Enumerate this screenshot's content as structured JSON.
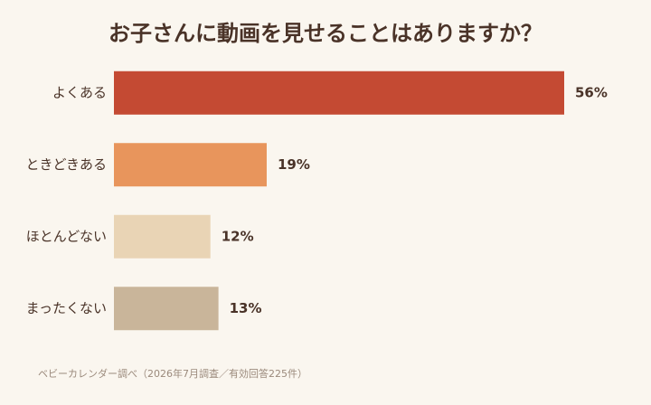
{
  "chart_data": {
    "type": "bar",
    "orientation": "horizontal",
    "title": "お子さんに動画を見せることはありますか？",
    "categories": [
      "よくある",
      "ときどきある",
      "ほとんどない",
      "まったくない"
    ],
    "values": [
      56,
      19,
      12,
      13
    ],
    "value_labels": [
      "56%",
      "19%",
      "12%",
      "13%"
    ],
    "colors": [
      "#c44a33",
      "#e8955c",
      "#e9d4b5",
      "#c9b59a"
    ],
    "note": "ベビーカレンダー調べ（2026年7月調査／有効回答225件）"
  }
}
